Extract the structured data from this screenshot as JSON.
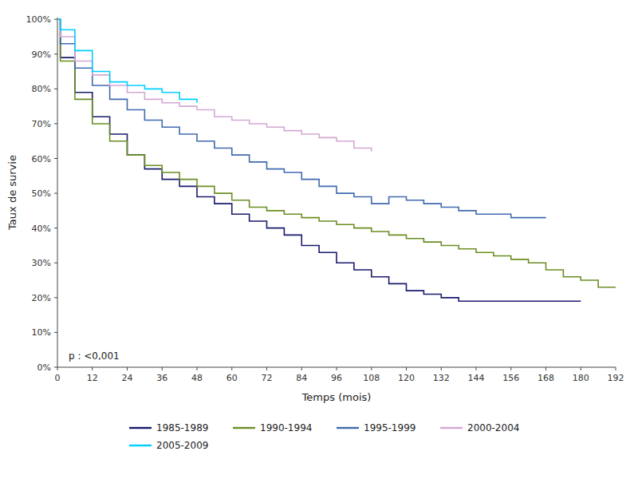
{
  "chart_data": {
    "type": "step",
    "title": "",
    "xlabel": "Temps (mois)",
    "ylabel": "Taux de survie",
    "xlim": [
      0,
      192
    ],
    "ylim": [
      0,
      1.005
    ],
    "xticks": [
      0,
      12,
      24,
      36,
      48,
      60,
      72,
      84,
      96,
      108,
      120,
      132,
      144,
      156,
      168,
      180,
      192
    ],
    "yticks": [
      {
        "value": 0.0,
        "label": "0%"
      },
      {
        "value": 0.1,
        "label": "10%"
      },
      {
        "value": 0.2,
        "label": "20%"
      },
      {
        "value": 0.3,
        "label": "30%"
      },
      {
        "value": 0.4,
        "label": "40%"
      },
      {
        "value": 0.5,
        "label": "50%"
      },
      {
        "value": 0.6,
        "label": "60%"
      },
      {
        "value": 0.7,
        "label": "70%"
      },
      {
        "value": 0.8,
        "label": "80%"
      },
      {
        "value": 0.9,
        "label": "90%"
      },
      {
        "value": 1.0,
        "label": "100%"
      }
    ],
    "annotation": "p : <0,001",
    "grid": false,
    "legend": "bottom",
    "series": [
      {
        "name": "1985-1989",
        "color": "#1a1a6e",
        "x": [
          0,
          1,
          6,
          12,
          18,
          24,
          30,
          36,
          42,
          48,
          54,
          60,
          66,
          72,
          78,
          84,
          90,
          96,
          102,
          108,
          114,
          120,
          126,
          132,
          138,
          144,
          180
        ],
        "values": [
          1.0,
          0.89,
          0.79,
          0.72,
          0.67,
          0.61,
          0.57,
          0.54,
          0.52,
          0.49,
          0.47,
          0.44,
          0.42,
          0.4,
          0.38,
          0.35,
          0.33,
          0.3,
          0.28,
          0.26,
          0.24,
          0.22,
          0.21,
          0.2,
          0.19,
          0.19,
          0.19
        ]
      },
      {
        "name": "1990-1994",
        "color": "#6b8e23",
        "x": [
          0,
          1,
          6,
          12,
          18,
          24,
          30,
          36,
          42,
          48,
          54,
          60,
          66,
          72,
          78,
          84,
          90,
          96,
          102,
          108,
          114,
          120,
          126,
          132,
          138,
          144,
          150,
          156,
          162,
          168,
          174,
          180,
          186,
          192
        ],
        "values": [
          1.0,
          0.88,
          0.77,
          0.7,
          0.65,
          0.61,
          0.58,
          0.56,
          0.54,
          0.52,
          0.5,
          0.48,
          0.46,
          0.45,
          0.44,
          0.43,
          0.42,
          0.41,
          0.4,
          0.39,
          0.38,
          0.37,
          0.36,
          0.35,
          0.34,
          0.33,
          0.32,
          0.31,
          0.3,
          0.28,
          0.26,
          0.25,
          0.23,
          0.23
        ]
      },
      {
        "name": "1995-1999",
        "color": "#4169b0",
        "x": [
          0,
          1,
          6,
          12,
          18,
          24,
          30,
          36,
          42,
          48,
          54,
          60,
          66,
          72,
          78,
          84,
          90,
          96,
          102,
          108,
          114,
          120,
          126,
          132,
          138,
          144,
          150,
          156,
          162,
          168
        ],
        "values": [
          1.0,
          0.93,
          0.86,
          0.81,
          0.77,
          0.74,
          0.71,
          0.69,
          0.67,
          0.65,
          0.63,
          0.61,
          0.59,
          0.57,
          0.56,
          0.54,
          0.52,
          0.5,
          0.49,
          0.47,
          0.49,
          0.48,
          0.47,
          0.46,
          0.45,
          0.44,
          0.44,
          0.43,
          0.43,
          0.43
        ]
      },
      {
        "name": "2000-2004",
        "color": "#d4a8d4",
        "x": [
          0,
          1,
          6,
          12,
          18,
          24,
          30,
          36,
          42,
          48,
          54,
          60,
          66,
          72,
          78,
          84,
          90,
          96,
          102,
          108
        ],
        "values": [
          1.0,
          0.95,
          0.88,
          0.84,
          0.81,
          0.79,
          0.77,
          0.76,
          0.75,
          0.74,
          0.72,
          0.71,
          0.7,
          0.69,
          0.68,
          0.67,
          0.66,
          0.65,
          0.63,
          0.62
        ]
      },
      {
        "name": "2005-2009",
        "color": "#00cfff",
        "x": [
          0,
          1,
          6,
          12,
          18,
          24,
          30,
          36,
          42,
          48
        ],
        "values": [
          1.0,
          0.97,
          0.91,
          0.85,
          0.82,
          0.81,
          0.8,
          0.79,
          0.77,
          0.76
        ]
      }
    ]
  }
}
